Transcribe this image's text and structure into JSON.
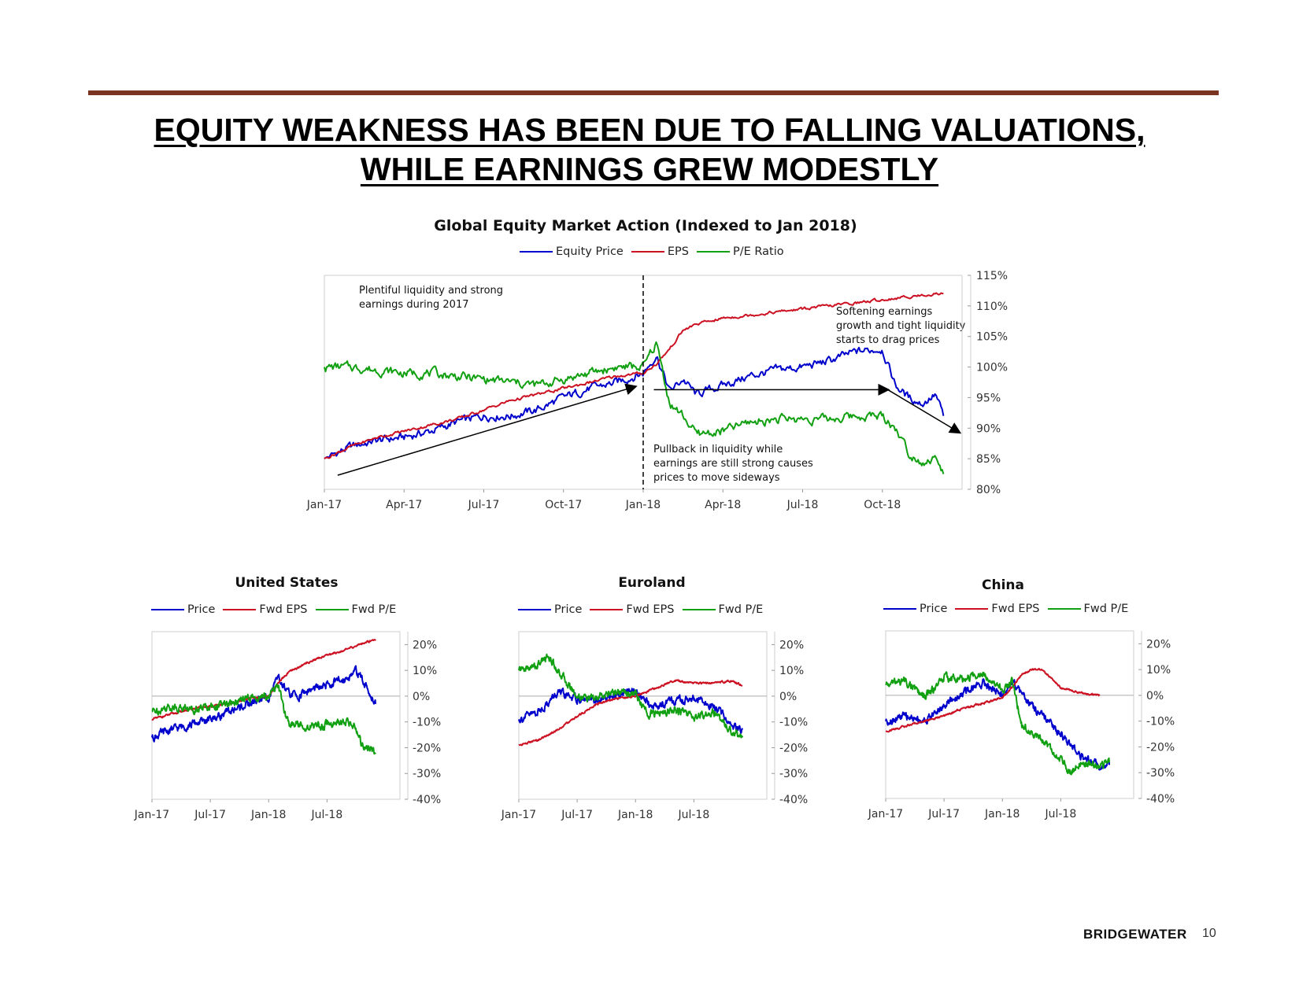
{
  "slide": {
    "title_line1": "EQUITY WEAKNESS HAS BEEN DUE TO FALLING VALUATIONS,",
    "title_line2": "WHILE EARNINGS GREW MODESTLY",
    "brand": "BRIDGEWATER",
    "page_number": "10",
    "rule_color": "#7a3522"
  },
  "colors": {
    "price": "#0000cc",
    "eps": "#cc1122",
    "pe": "#11a011"
  },
  "chart_data": [
    {
      "type": "line",
      "title": "Global Equity Market Action (Indexed to Jan 2018)",
      "legend": [
        "Equity Price",
        "EPS",
        "P/E Ratio"
      ],
      "x_ticks": [
        "Jan-17",
        "Apr-17",
        "Jul-17",
        "Oct-17",
        "Jan-18",
        "Apr-18",
        "Jul-18",
        "Oct-18"
      ],
      "y_ticks": [
        "80%",
        "85%",
        "90%",
        "95%",
        "100%",
        "105%",
        "110%",
        "115%"
      ],
      "ylim": [
        80,
        115
      ],
      "x_range_months": [
        0,
        24
      ],
      "vline_month": 12,
      "annotations": [
        "Plentiful liquidity and strong earnings during 2017",
        "Softening earnings growth and tight liquidity starts to drag prices",
        "Pullback in liquidity while earnings are still strong causes prices to move sideways"
      ],
      "series": [
        {
          "name": "Equity Price",
          "color": "#0000cc",
          "x": [
            0,
            1,
            2,
            3,
            4,
            5,
            6,
            7,
            8,
            9,
            10,
            11,
            12,
            12.5,
            13,
            13.5,
            14,
            15,
            16,
            17,
            18,
            19,
            20,
            21,
            21.2,
            21.5,
            22,
            22.5,
            23,
            23.3
          ],
          "y": [
            85,
            87,
            88,
            88.5,
            89.5,
            91,
            92,
            92,
            93,
            95,
            96.5,
            97.5,
            99,
            102,
            96,
            98,
            95.5,
            97,
            98.5,
            99.5,
            100,
            101,
            102.5,
            103,
            100.5,
            97,
            95,
            94,
            95.5,
            92
          ]
        },
        {
          "name": "EPS",
          "color": "#cc1122",
          "x": [
            0,
            1,
            2,
            3,
            4,
            5,
            6,
            7,
            8,
            9,
            10,
            11,
            12,
            12.5,
            13,
            13.5,
            14,
            15,
            16,
            17,
            18,
            19,
            20,
            21,
            22,
            23,
            23.3
          ],
          "y": [
            85,
            87,
            88.5,
            89.5,
            90.5,
            91.5,
            93,
            94.5,
            95.5,
            96.5,
            97.5,
            98.5,
            99,
            100.5,
            103,
            106,
            107,
            108,
            108.5,
            109,
            109.5,
            110,
            110.5,
            111,
            111.5,
            112,
            112
          ]
        },
        {
          "name": "P/E Ratio",
          "color": "#11a011",
          "x": [
            0,
            1,
            2,
            3,
            4,
            5,
            6,
            7,
            8,
            9,
            10,
            11,
            12,
            12.5,
            13,
            13.5,
            14,
            15,
            16,
            17,
            18,
            19,
            20,
            21,
            21.5,
            22,
            22.5,
            23,
            23.3
          ],
          "y": [
            100,
            100,
            99.5,
            99,
            99,
            98.5,
            98,
            97.5,
            97,
            98,
            99,
            100,
            100,
            104,
            94,
            92,
            89,
            89.5,
            91,
            91.5,
            91.5,
            91.5,
            92,
            92,
            90,
            86,
            84.5,
            85,
            82.5
          ]
        }
      ]
    },
    {
      "type": "line",
      "title": "United States",
      "legend": [
        "Price",
        "Fwd EPS",
        "Fwd P/E"
      ],
      "x_ticks": [
        "Jan-17",
        "Jul-17",
        "Jan-18",
        "Jul-18"
      ],
      "y_ticks": [
        "20%",
        "10%",
        "0%",
        "-10%",
        "-20%",
        "-30%",
        "-40%"
      ],
      "ylim": [
        -40,
        25
      ],
      "series": [
        {
          "name": "Price",
          "color": "#0000cc",
          "x": [
            0,
            2,
            4,
            6,
            8,
            10,
            12,
            13,
            14,
            15,
            16,
            18,
            20,
            21,
            22,
            23
          ],
          "y": [
            -16,
            -13,
            -11,
            -9,
            -6,
            -3,
            0,
            7,
            1,
            0,
            2,
            4,
            7,
            10,
            4,
            -3
          ]
        },
        {
          "name": "Fwd EPS",
          "color": "#cc1122",
          "x": [
            0,
            2,
            4,
            6,
            8,
            10,
            12,
            13,
            14,
            16,
            18,
            20,
            22,
            23
          ],
          "y": [
            -9,
            -7,
            -5,
            -4,
            -3,
            -1,
            0,
            5,
            9,
            13,
            16,
            18,
            21,
            22
          ]
        },
        {
          "name": "Fwd P/E",
          "color": "#11a011",
          "x": [
            0,
            2,
            4,
            6,
            8,
            10,
            12,
            13,
            13.5,
            14,
            15,
            16,
            18,
            20,
            21,
            21.5,
            22,
            23
          ],
          "y": [
            -6,
            -4,
            -5,
            -4,
            -3,
            -1,
            0,
            5,
            -5,
            -10,
            -11,
            -12,
            -11,
            -10,
            -12,
            -18,
            -20,
            -22
          ]
        }
      ]
    },
    {
      "type": "line",
      "title": "Euroland",
      "legend": [
        "Price",
        "Fwd EPS",
        "Fwd P/E"
      ],
      "x_ticks": [
        "Jan-17",
        "Jul-17",
        "Jan-18",
        "Jul-18"
      ],
      "y_ticks": [
        "20%",
        "10%",
        "0%",
        "-10%",
        "-20%",
        "-30%",
        "-40%"
      ],
      "ylim": [
        -40,
        25
      ],
      "series": [
        {
          "name": "Price",
          "color": "#0000cc",
          "x": [
            0,
            2,
            4,
            6,
            8,
            10,
            12,
            13,
            14,
            16,
            18,
            20,
            21,
            22,
            23
          ],
          "y": [
            -9,
            -6,
            1,
            -1,
            -2,
            1,
            2,
            -2,
            -4,
            -2,
            -1,
            -4,
            -7,
            -12,
            -13
          ]
        },
        {
          "name": "Fwd EPS",
          "color": "#cc1122",
          "x": [
            0,
            2,
            4,
            6,
            8,
            10,
            12,
            14,
            16,
            18,
            20,
            22,
            23
          ],
          "y": [
            -19,
            -17,
            -13,
            -8,
            -3,
            -1,
            0,
            3,
            6,
            5,
            5,
            6,
            4
          ]
        },
        {
          "name": "Fwd P/E",
          "color": "#11a011",
          "x": [
            0,
            2,
            3,
            4,
            6,
            8,
            10,
            12,
            13,
            14,
            16,
            18,
            20,
            21,
            22,
            23
          ],
          "y": [
            10,
            12,
            16,
            10,
            0,
            -1,
            2,
            1,
            -6,
            -7,
            -5,
            -8,
            -6,
            -10,
            -14,
            -16
          ]
        }
      ]
    },
    {
      "type": "line",
      "title": "China",
      "legend": [
        "Price",
        "Fwd EPS",
        "Fwd P/E"
      ],
      "x_ticks": [
        "Jan-17",
        "Jul-17",
        "Jan-18",
        "Jul-18"
      ],
      "y_ticks": [
        "20%",
        "10%",
        "0%",
        "-10%",
        "-20%",
        "-30%",
        "-40%"
      ],
      "ylim": [
        -40,
        25
      ],
      "series": [
        {
          "name": "Price",
          "color": "#0000cc",
          "x": [
            0,
            2,
            4,
            6,
            8,
            10,
            12,
            13,
            14,
            16,
            18,
            20,
            22,
            23
          ],
          "y": [
            -10,
            -8,
            -10,
            -4,
            1,
            5,
            0,
            6,
            0,
            -8,
            -15,
            -23,
            -27,
            -27
          ]
        },
        {
          "name": "Fwd EPS",
          "color": "#cc1122",
          "x": [
            0,
            2,
            4,
            6,
            8,
            10,
            12,
            13,
            14,
            15,
            16,
            17,
            18,
            20,
            22
          ],
          "y": [
            -14,
            -12,
            -10,
            -8,
            -5,
            -3,
            -1,
            3,
            8,
            10,
            10,
            7,
            3,
            1,
            0
          ]
        },
        {
          "name": "Fwd P/E",
          "color": "#11a011",
          "x": [
            0,
            2,
            4,
            6,
            8,
            10,
            11,
            12,
            13,
            14,
            16,
            18,
            19,
            20,
            22,
            23
          ],
          "y": [
            4,
            6,
            -1,
            7,
            6,
            9,
            6,
            2,
            6,
            -12,
            -17,
            -25,
            -30,
            -26,
            -28,
            -26
          ]
        }
      ]
    }
  ]
}
